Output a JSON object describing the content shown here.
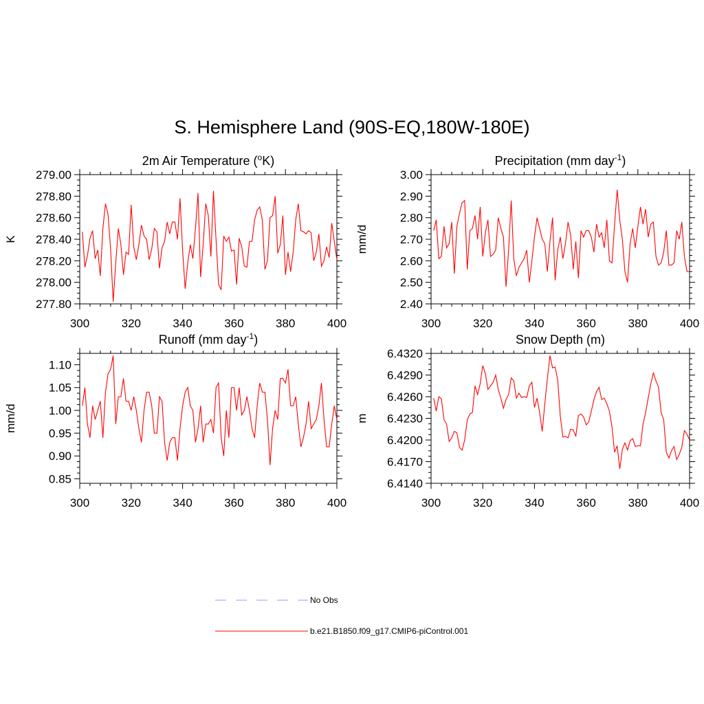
{
  "figure": {
    "title": "S. Hemisphere Land (90S-EQ,180W-180E)",
    "line_color": "#ff0000",
    "obs_color": "#9999ff"
  },
  "legend": {
    "items": [
      {
        "label": "No Obs",
        "style": "dashed",
        "color": "#9999ff"
      },
      {
        "label": "b.e21.B1850.f09_g17.CMIP6-piControl.001",
        "style": "solid",
        "color": "#ff0000"
      }
    ]
  },
  "chart_data": [
    {
      "type": "line",
      "title": "2m Air Temperature (",
      "title_sup": "o",
      "title_end": "K)",
      "ylabel": "K",
      "xlabel": "",
      "xlim": [
        300,
        400
      ],
      "ylim": [
        277.8,
        279.0
      ],
      "xticks": [
        "300",
        "320",
        "340",
        "360",
        "380",
        "400"
      ],
      "yticks": [
        "277.80",
        "278.00",
        "278.20",
        "278.40",
        "278.60",
        "278.80",
        "279.00"
      ],
      "series": [
        {
          "x_start": 301,
          "values": [
            278.47,
            278.14,
            278.25,
            278.41,
            278.48,
            278.22,
            278.3,
            278.06,
            278.5,
            278.73,
            278.63,
            278.31,
            277.82,
            278.18,
            278.5,
            278.35,
            278.07,
            278.28,
            278.26,
            278.72,
            278.33,
            278.21,
            278.35,
            278.53,
            278.43,
            278.4,
            278.21,
            278.31,
            278.5,
            278.47,
            278.13,
            278.32,
            278.38,
            278.56,
            278.45,
            278.56,
            278.56,
            278.4,
            278.78,
            278.3,
            277.94,
            278.18,
            278.35,
            278.22,
            278.5,
            278.83,
            278.05,
            278.35,
            278.73,
            278.62,
            278.24,
            278.85,
            278.4,
            277.98,
            277.93,
            278.43,
            278.38,
            278.42,
            278.29,
            278.3,
            277.98,
            278.41,
            278.33,
            278.15,
            278.14,
            278.38,
            278.38,
            278.58,
            278.67,
            278.7,
            278.58,
            278.12,
            278.2,
            278.6,
            278.62,
            278.8,
            278.27,
            278.35,
            278.62,
            278.07,
            278.28,
            278.1,
            278.28,
            278.58,
            278.73,
            278.48,
            278.47,
            278.45,
            278.48,
            278.46,
            278.2,
            278.28,
            278.45,
            278.15,
            278.2,
            278.33,
            278.23,
            278.55,
            278.38,
            278.21
          ]
        }
      ]
    },
    {
      "type": "line",
      "title": "Precipitation (mm day",
      "title_sup": "-1",
      "title_end": ")",
      "ylabel": "mm/d",
      "xlabel": "",
      "xlim": [
        300,
        400
      ],
      "ylim": [
        2.4,
        3.0
      ],
      "xticks": [
        "300",
        "320",
        "340",
        "360",
        "380",
        "400"
      ],
      "yticks": [
        "2.40",
        "2.50",
        "2.60",
        "2.70",
        "2.80",
        "2.90",
        "3.00"
      ],
      "series": [
        {
          "x_start": 301,
          "values": [
            2.74,
            2.79,
            2.61,
            2.62,
            2.76,
            2.66,
            2.68,
            2.78,
            2.54,
            2.76,
            2.82,
            2.87,
            2.88,
            2.56,
            2.74,
            2.75,
            2.81,
            2.7,
            2.85,
            2.62,
            2.73,
            2.79,
            2.62,
            2.63,
            2.65,
            2.8,
            2.75,
            2.71,
            2.48,
            2.65,
            2.88,
            2.61,
            2.53,
            2.57,
            2.59,
            2.61,
            2.65,
            2.5,
            2.6,
            2.71,
            2.8,
            2.75,
            2.7,
            2.68,
            2.55,
            2.69,
            2.8,
            2.51,
            2.65,
            2.71,
            2.61,
            2.68,
            2.78,
            2.72,
            2.56,
            2.69,
            2.52,
            2.74,
            2.71,
            2.74,
            2.74,
            2.71,
            2.64,
            2.77,
            2.71,
            2.73,
            2.66,
            2.79,
            2.6,
            2.59,
            2.77,
            2.93,
            2.79,
            2.7,
            2.55,
            2.5,
            2.68,
            2.75,
            2.66,
            2.76,
            2.85,
            2.77,
            2.84,
            2.71,
            2.77,
            2.78,
            2.62,
            2.58,
            2.59,
            2.64,
            2.74,
            2.58,
            2.58,
            2.59,
            2.74,
            2.7,
            2.78,
            2.62,
            2.55,
            2.55
          ]
        }
      ]
    },
    {
      "type": "line",
      "title": "Runoff (mm day",
      "title_sup": "-1",
      "title_end": ")",
      "ylabel": "mm/d",
      "xlabel": "",
      "xlim": [
        300,
        400
      ],
      "ylim": [
        0.84,
        1.125
      ],
      "xticks": [
        "300",
        "320",
        "340",
        "360",
        "380",
        "400"
      ],
      "yticks": [
        "0.85",
        "0.90",
        "0.95",
        "1.00",
        "1.05",
        "1.10"
      ],
      "ytick_values": [
        0.85,
        0.9,
        0.95,
        1.0,
        1.05,
        1.1
      ],
      "series": [
        {
          "x_start": 301,
          "values": [
            1.01,
            1.05,
            0.97,
            0.94,
            1.01,
            0.98,
            1.0,
            1.02,
            0.94,
            1.04,
            1.08,
            1.09,
            1.12,
            0.97,
            1.03,
            1.03,
            1.07,
            1.02,
            1.02,
            1.0,
            1.03,
            1.0,
            0.96,
            0.93,
            1.0,
            1.04,
            1.04,
            1.01,
            0.95,
            0.95,
            1.03,
            1.02,
            0.93,
            0.89,
            0.93,
            0.94,
            0.94,
            0.89,
            0.96,
            1.01,
            1.04,
            1.05,
            1.01,
            1.0,
            0.93,
            0.96,
            1.01,
            0.93,
            0.97,
            0.97,
            0.98,
            0.95,
            1.05,
            1.06,
            0.94,
            0.9,
            1.0,
            0.94,
            1.05,
            1.05,
            1.0,
            1.05,
            0.99,
            1.0,
            1.03,
            1.0,
            0.96,
            0.94,
            1.01,
            1.06,
            1.04,
            1.04,
            0.98,
            0.88,
            0.96,
            1.0,
            0.98,
            1.07,
            1.07,
            1.06,
            1.09,
            1.01,
            1.01,
            1.03,
            0.97,
            0.92,
            0.94,
            0.97,
            1.02,
            0.96,
            0.97,
            0.98,
            1.01,
            1.06,
            0.98,
            0.92,
            0.92,
            0.97,
            1.01,
            0.98
          ]
        }
      ]
    },
    {
      "type": "line",
      "title": "Snow Depth (m)",
      "title_sup": "",
      "title_end": "",
      "ylabel": "m",
      "xlabel": "",
      "xlim": [
        300,
        400
      ],
      "ylim": [
        6.414,
        6.432
      ],
      "xticks": [
        "300",
        "320",
        "340",
        "360",
        "380",
        "400"
      ],
      "yticks": [
        "6.4140",
        "6.4170",
        "6.4200",
        "6.4230",
        "6.4260",
        "6.4290",
        "6.4320"
      ],
      "series": [
        {
          "x_start": 301,
          "values": [
            6.4258,
            6.424,
            6.426,
            6.4257,
            6.4228,
            6.4222,
            6.4198,
            6.4203,
            6.4212,
            6.421,
            6.419,
            6.4186,
            6.42,
            6.4228,
            6.4236,
            6.4238,
            6.4275,
            6.4263,
            6.4278,
            6.4303,
            6.4292,
            6.427,
            6.4275,
            6.428,
            6.429,
            6.427,
            6.4258,
            6.4244,
            6.4256,
            6.4263,
            6.4286,
            6.4282,
            6.4258,
            6.4265,
            6.4259,
            6.426,
            6.4259,
            6.4275,
            6.428,
            6.4245,
            6.4258,
            6.4238,
            6.4212,
            6.425,
            6.4285,
            6.4317,
            6.43,
            6.4301,
            6.4283,
            6.4233,
            6.4204,
            6.4205,
            6.4203,
            6.4215,
            6.4214,
            6.4205,
            6.4234,
            6.4236,
            6.4232,
            6.4221,
            6.4225,
            6.424,
            6.4256,
            6.4267,
            6.4273,
            6.4256,
            6.4258,
            6.425,
            6.424,
            6.4218,
            6.4183,
            6.4192,
            6.416,
            6.4187,
            6.4196,
            6.4186,
            6.4199,
            6.4202,
            6.4191,
            6.4192,
            6.4192,
            6.4222,
            6.4238,
            6.4258,
            6.4278,
            6.4293,
            6.4282,
            6.4273,
            6.4238,
            6.4228,
            6.4183,
            6.4175,
            6.4185,
            6.4191,
            6.4173,
            6.418,
            6.419,
            6.4213,
            6.4208,
            6.42
          ]
        }
      ]
    }
  ]
}
